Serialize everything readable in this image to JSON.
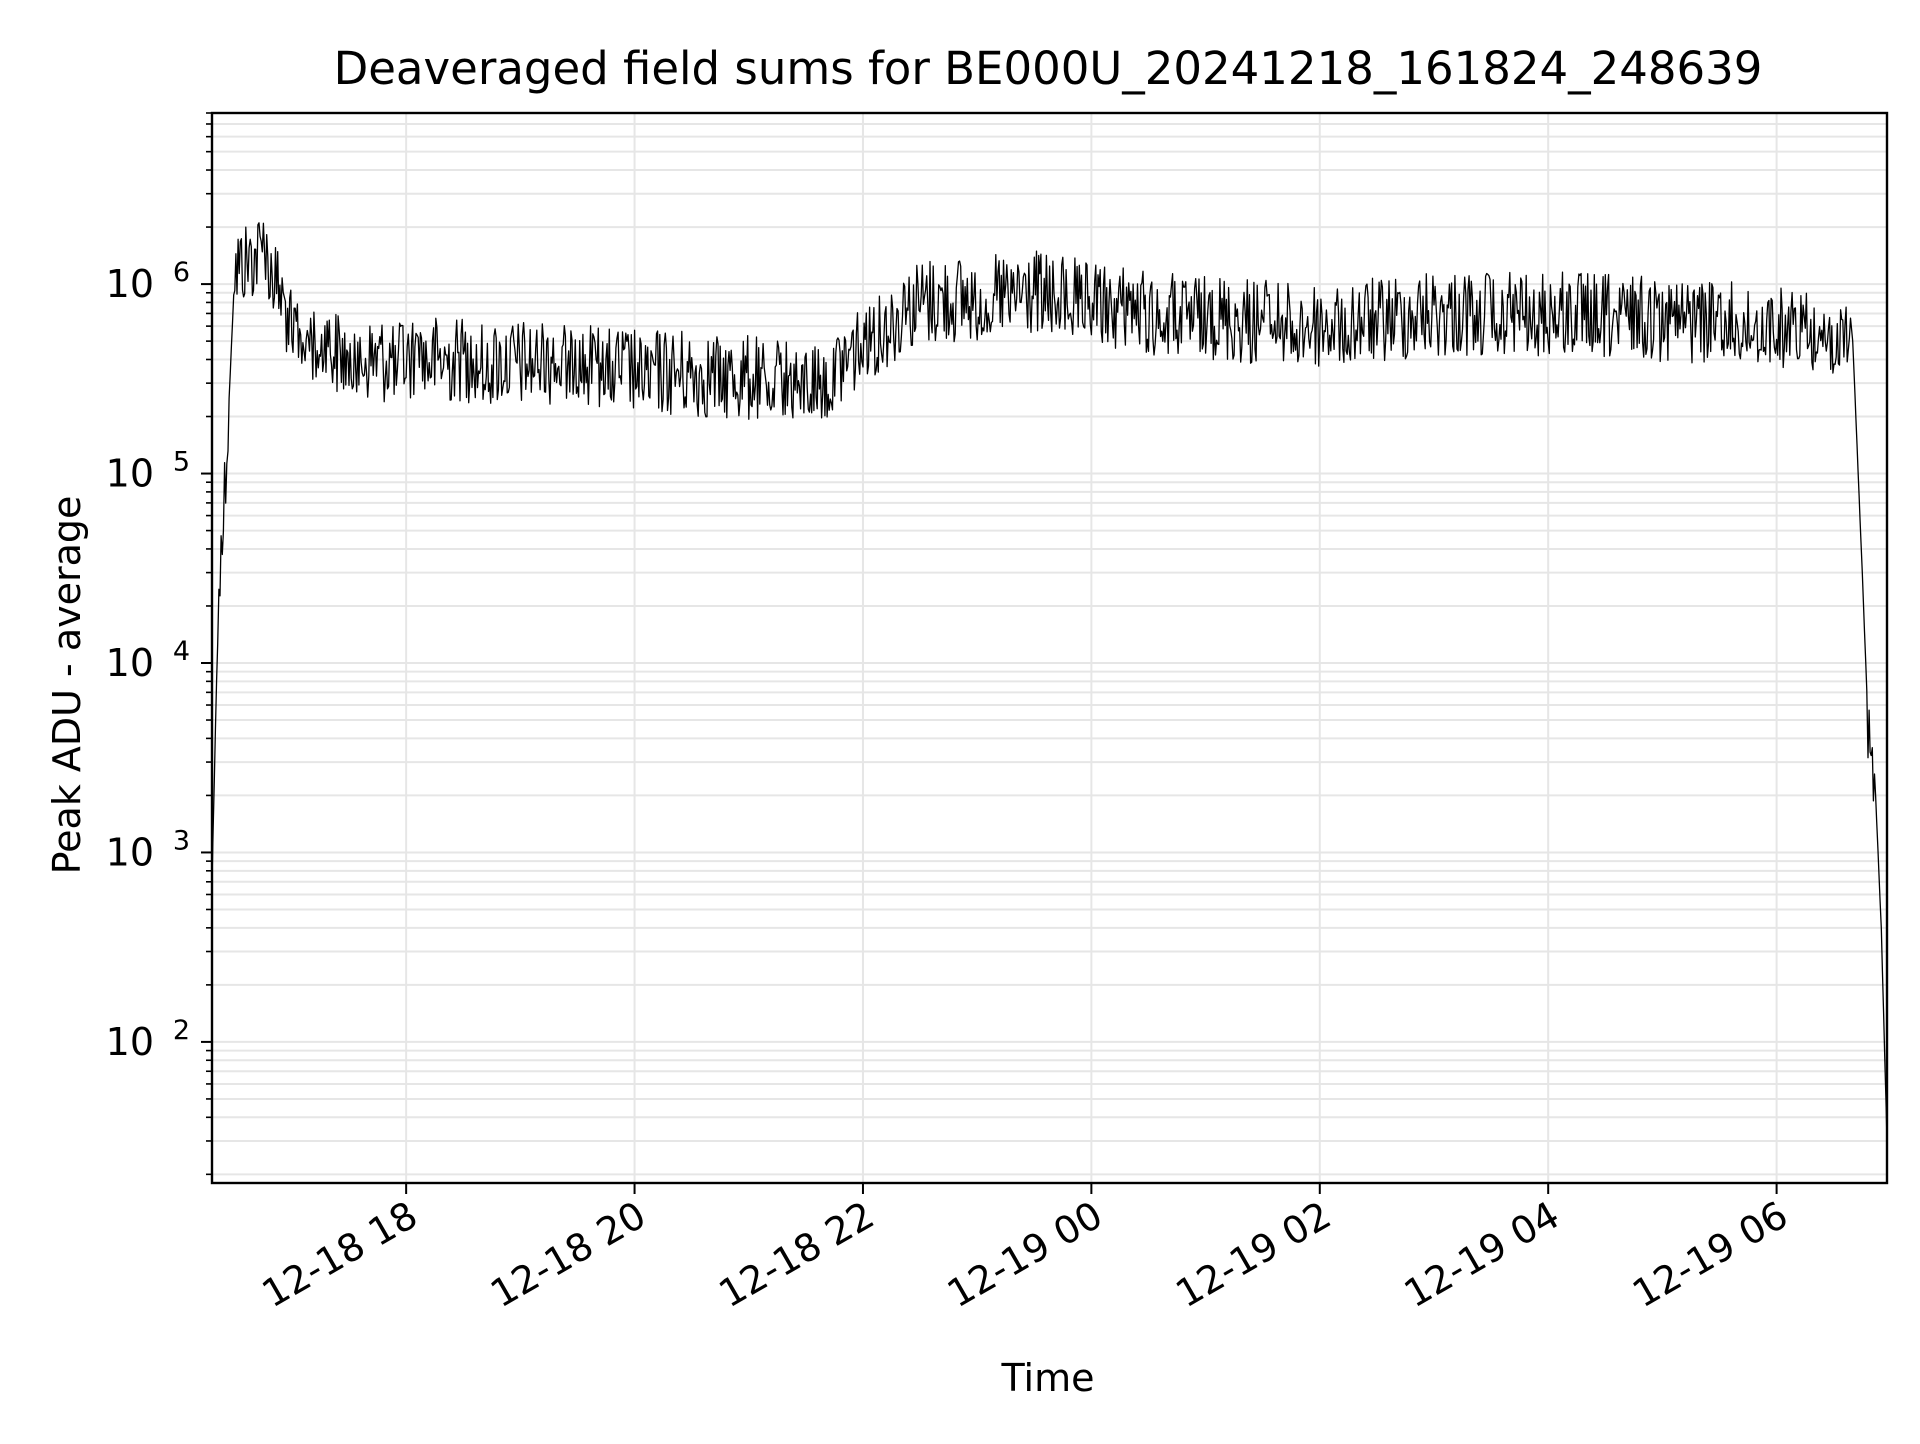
{
  "chart_data": {
    "type": "line",
    "title": "Deaveraged field sums for BE000U_20241218_161824_248639",
    "xlabel": "Time",
    "ylabel": "Peak ADU - average",
    "yscale": "log",
    "ylim": [
      18,
      8000000
    ],
    "xlim": [
      "2024-12-18 16:18",
      "2024-12-19 06:58"
    ],
    "x_ticks": [
      {
        "value": "2024-12-18 18:00",
        "label": "12-18 18"
      },
      {
        "value": "2024-12-18 20:00",
        "label": "12-18 20"
      },
      {
        "value": "2024-12-18 22:00",
        "label": "12-18 22"
      },
      {
        "value": "2024-12-19 00:00",
        "label": "12-19 00"
      },
      {
        "value": "2024-12-19 02:00",
        "label": "12-19 02"
      },
      {
        "value": "2024-12-19 04:00",
        "label": "12-19 04"
      },
      {
        "value": "2024-12-19 06:00",
        "label": "12-19 06"
      }
    ],
    "y_ticks": [
      {
        "value": 100,
        "base": "10",
        "exp": "2"
      },
      {
        "value": 1000,
        "base": "10",
        "exp": "3"
      },
      {
        "value": 10000,
        "base": "10",
        "exp": "4"
      },
      {
        "value": 100000,
        "base": "10",
        "exp": "5"
      },
      {
        "value": 1000000,
        "base": "10",
        "exp": "6"
      }
    ],
    "grid": true,
    "line_color": "#000000",
    "grid_color": "#e6e6e6",
    "series": [
      {
        "name": "",
        "points": [
          {
            "x": "2024-12-18 16:18",
            "y": 700
          },
          {
            "x": "2024-12-18 16:21",
            "y": 15000
          },
          {
            "x": "2024-12-18 16:24",
            "y": 60000
          },
          {
            "x": "2024-12-18 16:27",
            "y": 250000
          },
          {
            "x": "2024-12-18 16:30",
            "y": 1200000
          },
          {
            "x": "2024-12-18 16:45",
            "y": 1500000
          },
          {
            "x": "2024-12-18 17:00",
            "y": 600000
          },
          {
            "x": "2024-12-18 17:30",
            "y": 400000
          },
          {
            "x": "2024-12-18 18:00",
            "y": 400000
          },
          {
            "x": "2024-12-18 19:00",
            "y": 380000
          },
          {
            "x": "2024-12-18 20:00",
            "y": 350000
          },
          {
            "x": "2024-12-18 21:00",
            "y": 320000
          },
          {
            "x": "2024-12-18 21:40",
            "y": 300000
          },
          {
            "x": "2024-12-18 22:00",
            "y": 500000
          },
          {
            "x": "2024-12-18 22:30",
            "y": 800000
          },
          {
            "x": "2024-12-18 23:30",
            "y": 900000
          },
          {
            "x": "2024-12-19 00:30",
            "y": 700000
          },
          {
            "x": "2024-12-19 02:00",
            "y": 600000
          },
          {
            "x": "2024-12-19 03:00",
            "y": 700000
          },
          {
            "x": "2024-12-19 04:00",
            "y": 700000
          },
          {
            "x": "2024-12-19 05:00",
            "y": 650000
          },
          {
            "x": "2024-12-19 06:00",
            "y": 600000
          },
          {
            "x": "2024-12-19 06:40",
            "y": 500000
          },
          {
            "x": "2024-12-19 06:45",
            "y": 30000
          },
          {
            "x": "2024-12-19 06:48",
            "y": 5000
          },
          {
            "x": "2024-12-19 06:52",
            "y": 2000
          },
          {
            "x": "2024-12-19 06:55",
            "y": 400
          },
          {
            "x": "2024-12-19 06:58",
            "y": 30
          }
        ]
      }
    ]
  }
}
